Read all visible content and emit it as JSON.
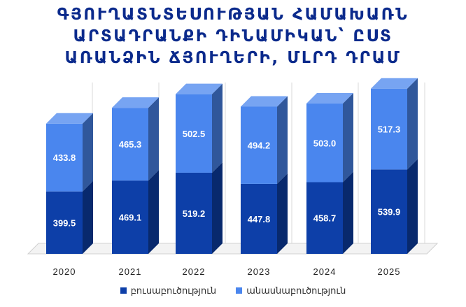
{
  "chart_data": {
    "type": "bar",
    "stacked": true,
    "title_lines": [
      "ԳՅՈՒՂԱՏՆՏԵՍՈՒԹՅԱՆ ՀԱՄԱԽԱՌՆ",
      "ԱՐՏԱԴՐԱՆՔԻ ԴԻՆԱՄԻԿԱՆ՝ ԸՍՏ",
      "ԱՌԱՆՁԻՆ ՃՅՈՒՂԵՐԻ, ՄԼՐԴ ԴՐԱՄ"
    ],
    "categories": [
      "2020",
      "2021",
      "2022",
      "2023",
      "2024",
      "2025"
    ],
    "series": [
      {
        "name": "բուսաբուծություն",
        "values": [
          399.5,
          469.1,
          519.2,
          447.8,
          458.7,
          539.9
        ],
        "color": "#0d3fa8"
      },
      {
        "name": "անասնաբուծություն",
        "values": [
          433.8,
          465.3,
          502.5,
          494.2,
          503.0,
          517.3
        ],
        "color": "#4a86ee"
      }
    ],
    "legend_position": "bottom",
    "grid": true,
    "three_d": true
  }
}
